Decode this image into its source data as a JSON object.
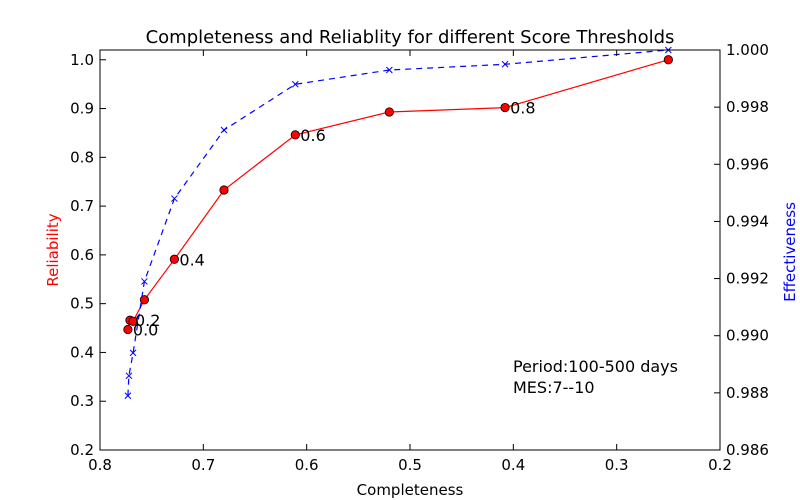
{
  "chart_data": {
    "type": "line",
    "title": "Completeness and Reliablity for different Score Thresholds",
    "xlabel": "Completeness",
    "ylabel_left": "Reliability",
    "ylabel_right": "Effectiveness",
    "xlim": [
      0.8,
      0.2
    ],
    "ylim_left": [
      0.2,
      1.02
    ],
    "ylim_right": [
      0.986,
      1.0
    ],
    "x_ticks": [
      0.8,
      0.7,
      0.6,
      0.5,
      0.4,
      0.3,
      0.2
    ],
    "x_tick_labels": [
      "0.8",
      "0.7",
      "0.6",
      "0.5",
      "0.4",
      "0.3",
      "0.2"
    ],
    "y_left_ticks": [
      0.2,
      0.3,
      0.4,
      0.5,
      0.6,
      0.7,
      0.8,
      0.9,
      1.0
    ],
    "y_left_tick_labels": [
      "0.2",
      "0.3",
      "0.4",
      "0.5",
      "0.6",
      "0.7",
      "0.8",
      "0.9",
      "1.0"
    ],
    "y_right_ticks": [
      0.986,
      0.988,
      0.99,
      0.992,
      0.994,
      0.996,
      0.998,
      1.0
    ],
    "y_right_tick_labels": [
      "0.986",
      "0.988",
      "0.990",
      "0.992",
      "0.994",
      "0.996",
      "0.998",
      "1.000"
    ],
    "series": [
      {
        "name": "Reliability",
        "axis": "left",
        "color": "#ff0000",
        "line_style": "solid",
        "marker": "circle",
        "x": [
          0.773,
          0.771,
          0.768,
          0.757,
          0.728,
          0.68,
          0.611,
          0.52,
          0.408,
          0.25
        ],
        "y": [
          0.447,
          0.466,
          0.464,
          0.508,
          0.591,
          0.733,
          0.846,
          0.893,
          0.902,
          1.0
        ]
      },
      {
        "name": "Effectiveness",
        "axis": "right",
        "color": "#0000ff",
        "line_style": "dashed",
        "marker": "x",
        "x": [
          0.773,
          0.772,
          0.768,
          0.757,
          0.728,
          0.68,
          0.611,
          0.52,
          0.408,
          0.25
        ],
        "y": [
          0.9879,
          0.9886,
          0.9894,
          0.9919,
          0.9948,
          0.9972,
          0.9988,
          0.9993,
          0.9995,
          1.0
        ]
      }
    ],
    "annotations": [
      {
        "text": "0.0",
        "x": 0.773,
        "y": 0.447
      },
      {
        "text": "0.2",
        "x": 0.771,
        "y": 0.466
      },
      {
        "text": "0.4",
        "x": 0.728,
        "y": 0.591
      },
      {
        "text": "0.6",
        "x": 0.611,
        "y": 0.846
      },
      {
        "text": "0.8",
        "x": 0.408,
        "y": 0.902
      }
    ],
    "info_text": [
      "Period:100-500 days",
      "MES:7--10"
    ]
  }
}
